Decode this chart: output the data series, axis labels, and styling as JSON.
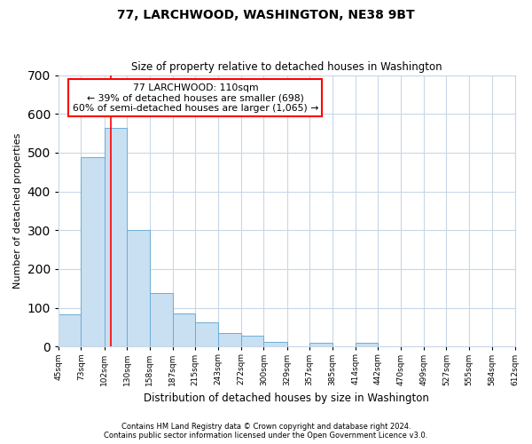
{
  "title": "77, LARCHWOOD, WASHINGTON, NE38 9BT",
  "subtitle": "Size of property relative to detached houses in Washington",
  "xlabel": "Distribution of detached houses by size in Washington",
  "ylabel": "Number of detached properties",
  "bar_color": "#c9dff2",
  "bar_edge_color": "#6aaed6",
  "bin_edges": [
    45,
    73,
    102,
    130,
    158,
    187,
    215,
    243,
    272,
    300,
    329,
    357,
    385,
    414,
    442,
    470,
    499,
    527,
    555,
    584,
    612
  ],
  "bar_heights": [
    83,
    488,
    565,
    301,
    139,
    85,
    63,
    35,
    29,
    12,
    0,
    10,
    0,
    10,
    0,
    0,
    0,
    0,
    0,
    0
  ],
  "tick_labels": [
    "45sqm",
    "73sqm",
    "102sqm",
    "130sqm",
    "158sqm",
    "187sqm",
    "215sqm",
    "243sqm",
    "272sqm",
    "300sqm",
    "329sqm",
    "357sqm",
    "385sqm",
    "414sqm",
    "442sqm",
    "470sqm",
    "499sqm",
    "527sqm",
    "555sqm",
    "584sqm",
    "612sqm"
  ],
  "ylim": [
    0,
    700
  ],
  "yticks": [
    0,
    100,
    200,
    300,
    400,
    500,
    600,
    700
  ],
  "red_line_x": 110,
  "annotation_title": "77 LARCHWOOD: 110sqm",
  "annotation_line1": "← 39% of detached houses are smaller (698)",
  "annotation_line2": "60% of semi-detached houses are larger (1,065) →",
  "footnote1": "Contains HM Land Registry data © Crown copyright and database right 2024.",
  "footnote2": "Contains public sector information licensed under the Open Government Licence v3.0.",
  "background_color": "#ffffff",
  "grid_color": "#c8d8e8"
}
